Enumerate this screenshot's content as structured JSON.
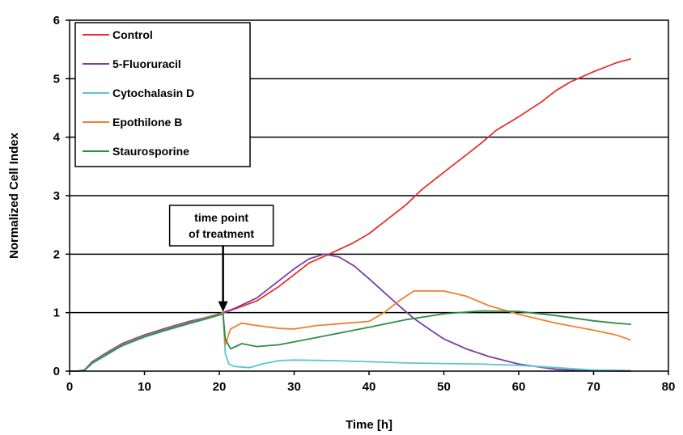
{
  "chart_data": {
    "type": "line",
    "title": "",
    "xlabel": "Time [h]",
    "ylabel": "Normalized Cell Index",
    "xlim": [
      0,
      80
    ],
    "ylim": [
      0,
      6
    ],
    "xticks": [
      "0",
      "10",
      "20",
      "30",
      "40",
      "50",
      "60",
      "70",
      "80"
    ],
    "yticks": [
      "0",
      "1",
      "2",
      "3",
      "4",
      "5",
      "6"
    ],
    "grid": "horizontal",
    "legend_position": "top-left",
    "annotation": {
      "lines": [
        "time point",
        "of treatment"
      ],
      "x": 20.5,
      "y": 1.0
    },
    "series": [
      {
        "name": "Control",
        "color": "#e8302a",
        "points": [
          [
            0,
            0
          ],
          [
            1,
            0
          ],
          [
            2,
            0.02
          ],
          [
            3,
            0.15
          ],
          [
            5,
            0.3
          ],
          [
            7,
            0.45
          ],
          [
            10,
            0.6
          ],
          [
            13,
            0.72
          ],
          [
            16,
            0.83
          ],
          [
            18,
            0.9
          ],
          [
            20,
            0.97
          ],
          [
            22,
            1.06
          ],
          [
            25,
            1.2
          ],
          [
            28,
            1.45
          ],
          [
            30,
            1.65
          ],
          [
            32,
            1.85
          ],
          [
            35,
            2.02
          ],
          [
            38,
            2.2
          ],
          [
            40,
            2.35
          ],
          [
            42,
            2.55
          ],
          [
            45,
            2.85
          ],
          [
            47,
            3.1
          ],
          [
            50,
            3.4
          ],
          [
            53,
            3.7
          ],
          [
            55,
            3.9
          ],
          [
            57,
            4.12
          ],
          [
            60,
            4.35
          ],
          [
            63,
            4.6
          ],
          [
            65,
            4.8
          ],
          [
            67,
            4.95
          ],
          [
            70,
            5.12
          ],
          [
            73,
            5.27
          ],
          [
            75,
            5.34
          ]
        ]
      },
      {
        "name": "5-Fluoruracil",
        "color": "#7b3fa0",
        "points": [
          [
            0,
            0
          ],
          [
            1,
            0
          ],
          [
            2,
            0.02
          ],
          [
            3,
            0.16
          ],
          [
            5,
            0.32
          ],
          [
            7,
            0.47
          ],
          [
            10,
            0.62
          ],
          [
            13,
            0.74
          ],
          [
            16,
            0.85
          ],
          [
            18,
            0.91
          ],
          [
            20,
            0.98
          ],
          [
            22,
            1.07
          ],
          [
            25,
            1.25
          ],
          [
            28,
            1.55
          ],
          [
            30,
            1.75
          ],
          [
            32,
            1.92
          ],
          [
            34,
            2.0
          ],
          [
            36,
            1.95
          ],
          [
            38,
            1.8
          ],
          [
            40,
            1.58
          ],
          [
            42,
            1.35
          ],
          [
            44,
            1.12
          ],
          [
            46,
            0.9
          ],
          [
            48,
            0.72
          ],
          [
            50,
            0.55
          ],
          [
            53,
            0.38
          ],
          [
            56,
            0.25
          ],
          [
            60,
            0.12
          ],
          [
            65,
            0.03
          ],
          [
            68,
            0.01
          ],
          [
            75,
            0.0
          ]
        ]
      },
      {
        "name": "Cytochalasin D",
        "color": "#5bc5d0",
        "points": [
          [
            0,
            0
          ],
          [
            1,
            0
          ],
          [
            2,
            0.01
          ],
          [
            3,
            0.13
          ],
          [
            5,
            0.28
          ],
          [
            7,
            0.43
          ],
          [
            10,
            0.58
          ],
          [
            13,
            0.7
          ],
          [
            16,
            0.81
          ],
          [
            18,
            0.88
          ],
          [
            20,
            0.96
          ],
          [
            20.5,
            0.98
          ],
          [
            20.8,
            0.3
          ],
          [
            21.3,
            0.12
          ],
          [
            22,
            0.08
          ],
          [
            24,
            0.06
          ],
          [
            26,
            0.13
          ],
          [
            28,
            0.18
          ],
          [
            30,
            0.19
          ],
          [
            35,
            0.18
          ],
          [
            40,
            0.16
          ],
          [
            45,
            0.14
          ],
          [
            50,
            0.13
          ],
          [
            55,
            0.12
          ],
          [
            60,
            0.1
          ],
          [
            65,
            0.06
          ],
          [
            70,
            0.02
          ],
          [
            75,
            0.01
          ]
        ]
      },
      {
        "name": "Epothilone B",
        "color": "#f08030",
        "points": [
          [
            0,
            0
          ],
          [
            1,
            0
          ],
          [
            2,
            0.02
          ],
          [
            3,
            0.15
          ],
          [
            5,
            0.3
          ],
          [
            7,
            0.45
          ],
          [
            10,
            0.6
          ],
          [
            13,
            0.72
          ],
          [
            16,
            0.83
          ],
          [
            18,
            0.9
          ],
          [
            20,
            0.97
          ],
          [
            20.5,
            1.0
          ],
          [
            20.8,
            0.45
          ],
          [
            21.5,
            0.72
          ],
          [
            23,
            0.82
          ],
          [
            25,
            0.78
          ],
          [
            28,
            0.73
          ],
          [
            30,
            0.72
          ],
          [
            33,
            0.78
          ],
          [
            37,
            0.82
          ],
          [
            40,
            0.85
          ],
          [
            42,
            1.0
          ],
          [
            44,
            1.2
          ],
          [
            46,
            1.37
          ],
          [
            50,
            1.37
          ],
          [
            53,
            1.28
          ],
          [
            56,
            1.12
          ],
          [
            60,
            0.97
          ],
          [
            65,
            0.82
          ],
          [
            70,
            0.7
          ],
          [
            73,
            0.62
          ],
          [
            75,
            0.53
          ]
        ]
      },
      {
        "name": "Staurosporine",
        "color": "#2e8b4a",
        "points": [
          [
            0,
            0
          ],
          [
            1,
            0
          ],
          [
            2,
            0.02
          ],
          [
            3,
            0.14
          ],
          [
            5,
            0.29
          ],
          [
            7,
            0.44
          ],
          [
            10,
            0.59
          ],
          [
            13,
            0.71
          ],
          [
            16,
            0.82
          ],
          [
            18,
            0.89
          ],
          [
            20,
            0.96
          ],
          [
            20.5,
            0.98
          ],
          [
            20.8,
            0.55
          ],
          [
            21.5,
            0.38
          ],
          [
            23,
            0.47
          ],
          [
            25,
            0.42
          ],
          [
            28,
            0.45
          ],
          [
            32,
            0.55
          ],
          [
            36,
            0.65
          ],
          [
            40,
            0.75
          ],
          [
            45,
            0.88
          ],
          [
            50,
            0.98
          ],
          [
            55,
            1.03
          ],
          [
            60,
            1.02
          ],
          [
            65,
            0.95
          ],
          [
            70,
            0.86
          ],
          [
            73,
            0.82
          ],
          [
            75,
            0.8
          ]
        ]
      }
    ]
  }
}
